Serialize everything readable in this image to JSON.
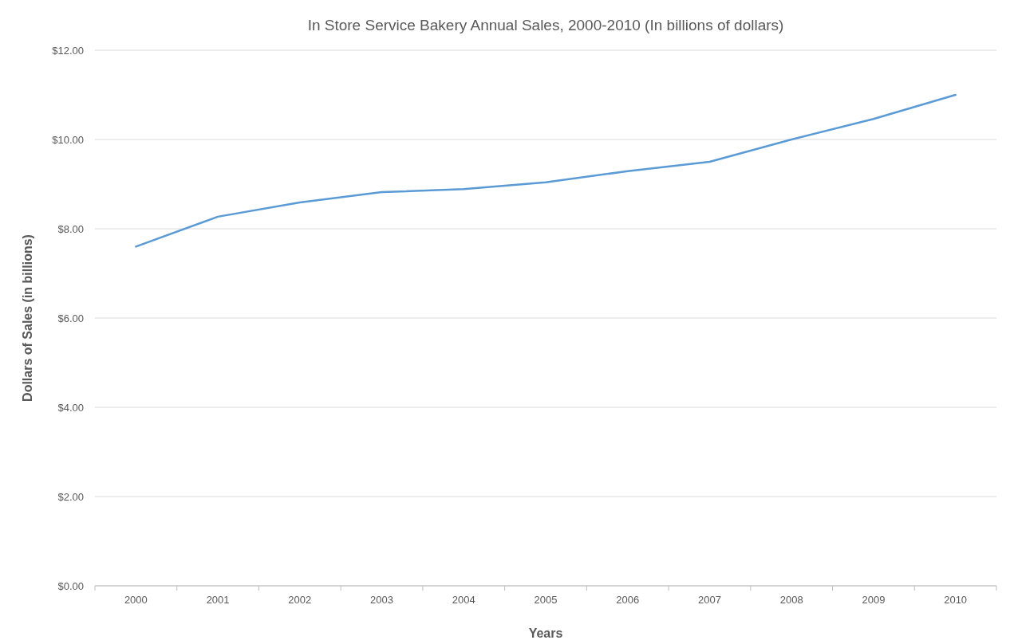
{
  "chart_data": {
    "type": "line",
    "title": "In Store Service Bakery Annual Sales, 2000-2010 (In billions of dollars)",
    "xlabel": "Years",
    "ylabel": "Dollars of Sales (in billions)",
    "categories": [
      "2000",
      "2001",
      "2002",
      "2003",
      "2004",
      "2005",
      "2006",
      "2007",
      "2008",
      "2009",
      "2010"
    ],
    "series": [
      {
        "color": "#5b9bd5",
        "values": [
          7.6,
          8.27,
          8.59,
          8.82,
          8.89,
          9.04,
          9.29,
          9.5,
          10.0,
          10.46,
          11.0
        ]
      }
    ],
    "ylim": [
      0,
      12
    ],
    "yticks": [
      {
        "value": 0,
        "label": "$0.00"
      },
      {
        "value": 2,
        "label": "$2.00"
      },
      {
        "value": 4,
        "label": "$4.00"
      },
      {
        "value": 6,
        "label": "$6.00"
      },
      {
        "value": 8,
        "label": "$8.00"
      },
      {
        "value": 10,
        "label": "$10.00"
      },
      {
        "value": 12,
        "label": "$12.00"
      }
    ],
    "grid": "y",
    "marker": "none",
    "line_style": "solid"
  }
}
